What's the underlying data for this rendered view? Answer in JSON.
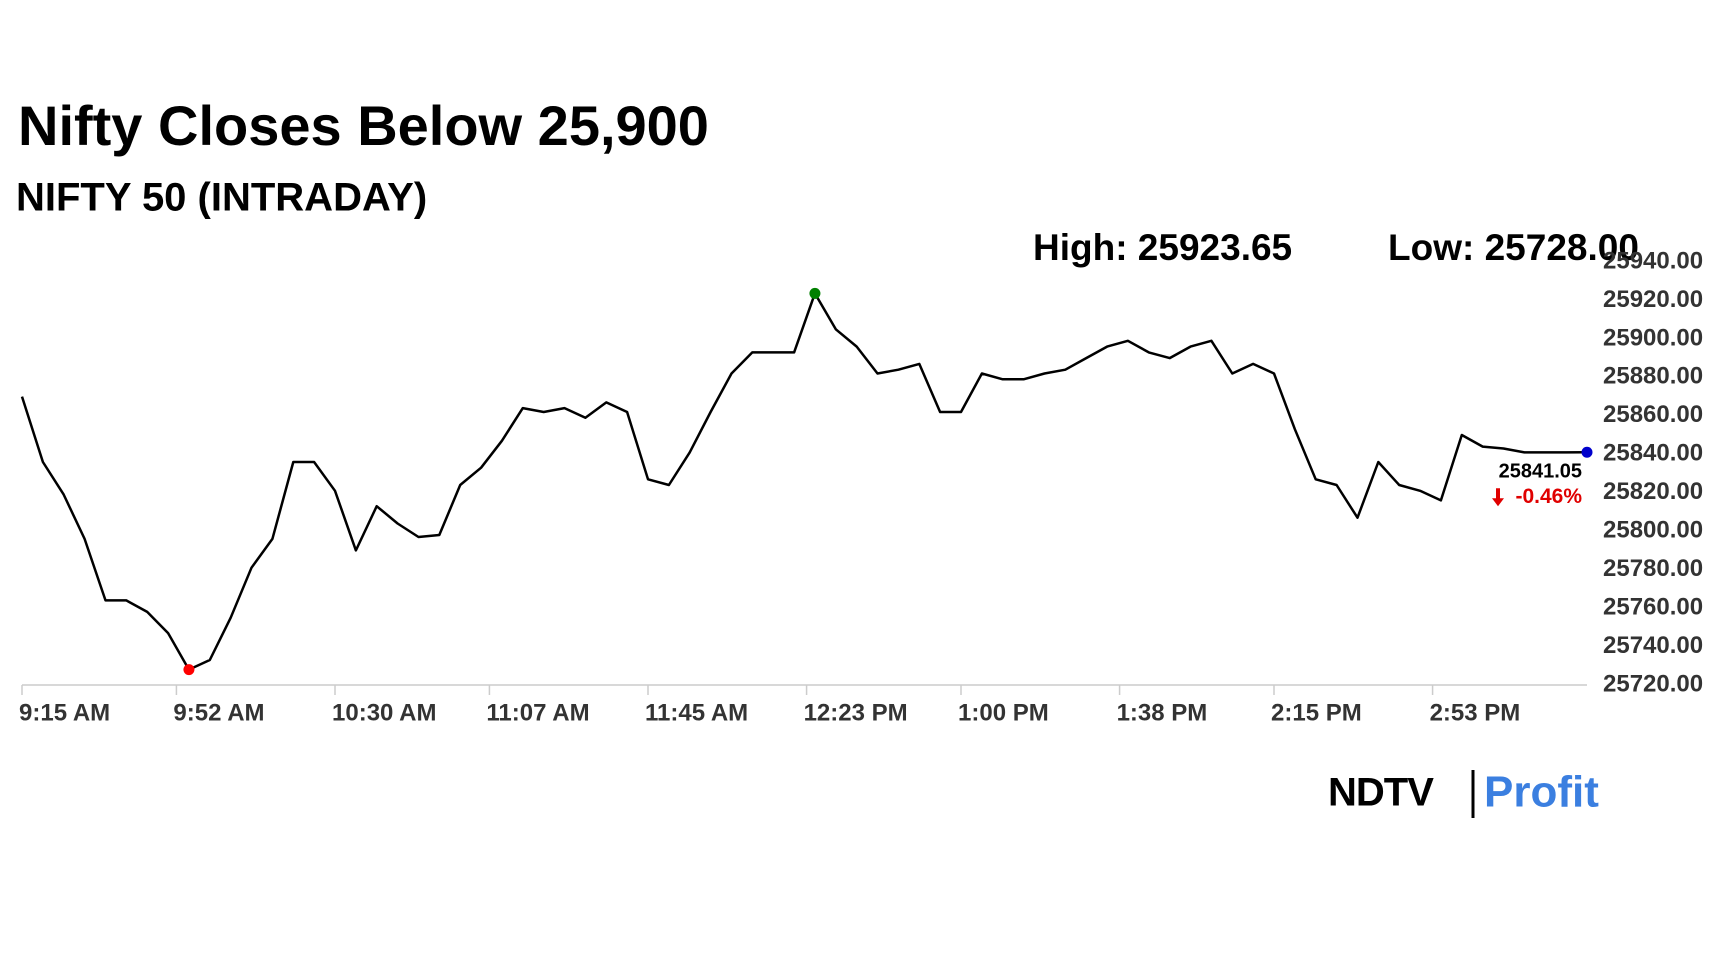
{
  "chart_data": {
    "type": "line",
    "title": "Nifty Closes Below 25,900",
    "subtitle": "NIFTY 50 (INTRADAY)",
    "high_label": "High: 25923.65",
    "low_label": "Low: 25728.00",
    "last_label": "25841.05",
    "change_label": "-0.46%",
    "change_color": "#e00000",
    "color": "#000000",
    "high_color": "#008000",
    "low_color": "#ff0000",
    "last_color": "#0000cc",
    "x": [
      "9:15 AM",
      "9:20 AM",
      "9:25 AM",
      "9:30 AM",
      "9:35 AM",
      "9:40 AM",
      "9:45 AM",
      "9:50 AM",
      "9:55 AM",
      "10:00 AM",
      "10:05 AM",
      "10:10 AM",
      "10:15 AM",
      "10:20 AM",
      "10:25 AM",
      "10:30 AM",
      "10:35 AM",
      "10:40 AM",
      "10:45 AM",
      "10:50 AM",
      "10:55 AM",
      "11:00 AM",
      "11:05 AM",
      "11:10 AM",
      "11:15 AM",
      "11:20 AM",
      "11:25 AM",
      "11:30 AM",
      "11:35 AM",
      "11:40 AM",
      "11:45 AM",
      "11:50 AM",
      "11:55 AM",
      "12:00 PM",
      "12:05 PM",
      "12:10 PM",
      "12:15 PM",
      "12:20 PM",
      "12:25 PM",
      "12:30 PM",
      "12:35 PM",
      "12:40 PM",
      "12:45 PM",
      "12:50 PM",
      "12:55 PM",
      "1:00 PM",
      "1:05 PM",
      "1:10 PM",
      "1:15 PM",
      "1:20 PM",
      "1:25 PM",
      "1:30 PM",
      "1:35 PM",
      "1:40 PM",
      "1:45 PM",
      "1:50 PM",
      "1:55 PM",
      "2:00 PM",
      "2:05 PM",
      "2:10 PM",
      "2:15 PM",
      "2:20 PM",
      "2:25 PM",
      "2:30 PM",
      "2:35 PM",
      "2:40 PM",
      "2:45 PM",
      "2:50 PM",
      "2:55 PM",
      "3:00 PM",
      "3:05 PM",
      "3:10 PM",
      "3:15 PM",
      "3:20 PM",
      "3:25 PM",
      "3:30 PM"
    ],
    "values": [
      25870,
      25836,
      25819,
      25796,
      25764,
      25764,
      25758,
      25747,
      25728,
      25733,
      25755,
      25781,
      25796,
      25836,
      25836,
      25821,
      25790,
      25813,
      25804,
      25797,
      25798,
      25824,
      25833,
      25847,
      25864,
      25862,
      25864,
      25859,
      25867,
      25862,
      25827,
      25824,
      25841,
      25862,
      25882,
      25893,
      25893,
      25893,
      25923.65,
      25905,
      25896,
      25882,
      25884,
      25887,
      25862,
      25862,
      25882,
      25879,
      25879,
      25882,
      25884,
      25890,
      25896,
      25899,
      25893,
      25890,
      25896,
      25899,
      25882,
      25887,
      25882,
      25853,
      25827,
      25824,
      25807,
      25836,
      25824,
      25821,
      25816,
      25850,
      25844,
      25843,
      25841,
      25841,
      25841,
      25841.05
    ],
    "xticks": [
      "9:15 AM",
      "9:52 AM",
      "10:30 AM",
      "11:07 AM",
      "11:45 AM",
      "12:23 PM",
      "1:00 PM",
      "1:38 PM",
      "2:15 PM",
      "2:53 PM"
    ],
    "ylim": [
      25720,
      25940
    ],
    "yticks": [
      {
        "value": 25720,
        "label": "25720.00"
      },
      {
        "value": 25740,
        "label": "25740.00"
      },
      {
        "value": 25760,
        "label": "25760.00"
      },
      {
        "value": 25780,
        "label": "25780.00"
      },
      {
        "value": 25800,
        "label": "25800.00"
      },
      {
        "value": 25820,
        "label": "25820.00"
      },
      {
        "value": 25840,
        "label": "25840.00"
      },
      {
        "value": 25860,
        "label": "25860.00"
      },
      {
        "value": 25880,
        "label": "25880.00"
      },
      {
        "value": 25900,
        "label": "25900.00"
      },
      {
        "value": 25920,
        "label": "25920.00"
      },
      {
        "value": 25940,
        "label": "25940.00"
      }
    ]
  },
  "logo": {
    "left": "NDTV",
    "right": "Profit"
  }
}
